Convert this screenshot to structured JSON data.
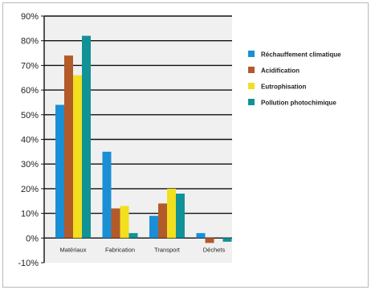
{
  "chart_data": {
    "type": "bar",
    "categories": [
      "Matériaux",
      "Fabrication",
      "Transport",
      "Déchets"
    ],
    "series": [
      {
        "name": "Réchauffement climatique",
        "color": "#1b8fd6",
        "values": [
          54,
          35,
          9,
          2
        ]
      },
      {
        "name": "Acidification",
        "color": "#b35a2a",
        "values": [
          74,
          12,
          14,
          -2
        ]
      },
      {
        "name": "Eutrophisation",
        "color": "#f2df1d",
        "values": [
          66,
          13,
          20,
          0
        ]
      },
      {
        "name": "Pollution photochimique",
        "color": "#119297",
        "values": [
          82,
          2,
          18,
          -1.5
        ]
      }
    ],
    "yticks": [
      "-10%",
      "0%",
      "10%",
      "20%",
      "30%",
      "40%",
      "50%",
      "60%",
      "70%",
      "80%",
      "90%"
    ],
    "ylim": [
      -10,
      90
    ],
    "plot_background": "#f0f0f0",
    "grid": true,
    "legend_position": "right"
  }
}
